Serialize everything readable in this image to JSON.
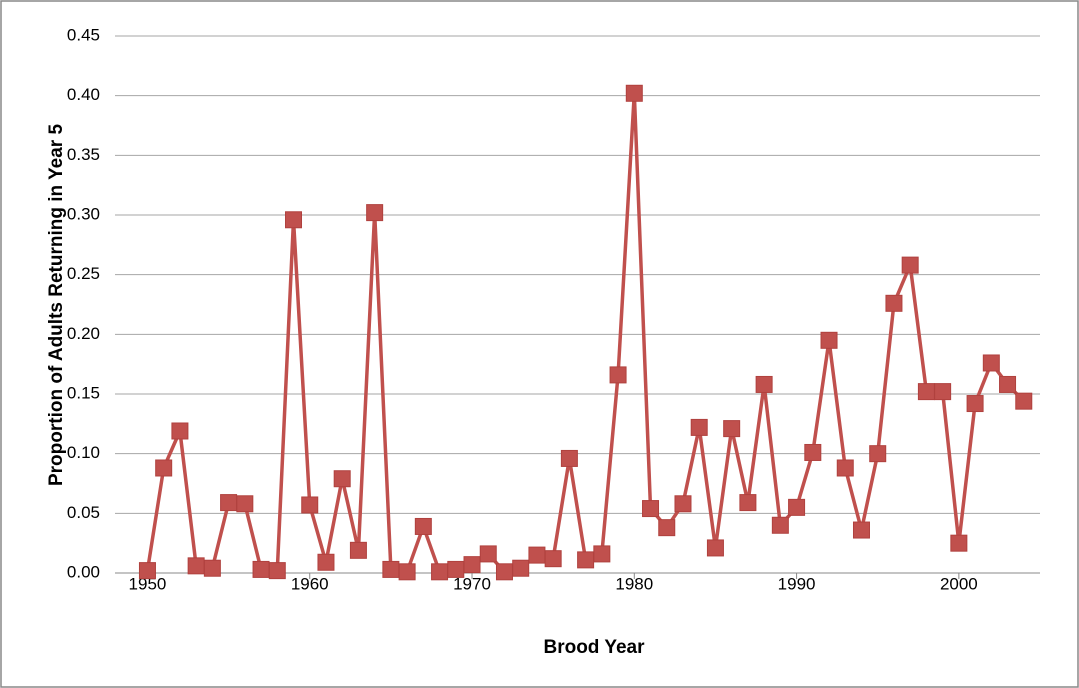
{
  "chart_data": {
    "type": "line",
    "x_label": "Brood Year",
    "y_label": "Proportion of Adults Returning in Year 5",
    "x": [
      1950,
      1951,
      1952,
      1953,
      1954,
      1955,
      1956,
      1957,
      1958,
      1959,
      1960,
      1961,
      1962,
      1963,
      1964,
      1965,
      1966,
      1967,
      1968,
      1969,
      1970,
      1971,
      1972,
      1973,
      1974,
      1975,
      1976,
      1977,
      1978,
      1979,
      1980,
      1981,
      1982,
      1983,
      1984,
      1985,
      1986,
      1987,
      1988,
      1989,
      1990,
      1991,
      1992,
      1993,
      1994,
      1995,
      1996,
      1997,
      1998,
      1999,
      2000,
      2001,
      2002,
      2003,
      2004
    ],
    "values": [
      0.002,
      0.088,
      0.119,
      0.006,
      0.004,
      0.059,
      0.058,
      0.003,
      0.002,
      0.296,
      0.057,
      0.009,
      0.079,
      0.019,
      0.302,
      0.003,
      0.001,
      0.039,
      0.001,
      0.003,
      0.007,
      0.016,
      0.001,
      0.004,
      0.015,
      0.012,
      0.096,
      0.011,
      0.016,
      0.166,
      0.402,
      0.054,
      0.038,
      0.058,
      0.122,
      0.021,
      0.121,
      0.059,
      0.158,
      0.04,
      0.055,
      0.101,
      0.195,
      0.088,
      0.036,
      0.1,
      0.226,
      0.258,
      0.152,
      0.152,
      0.025,
      0.142,
      0.176,
      0.158,
      0.144
    ],
    "color": "#c0504d",
    "xlim": [
      1948,
      2005
    ],
    "xticks": [
      1950,
      1960,
      1970,
      1980,
      1990,
      2000
    ],
    "ylim": [
      0,
      0.45
    ],
    "yticks": [
      {
        "value": 0,
        "label": "0.00"
      },
      {
        "value": 0.05,
        "label": "0.05"
      },
      {
        "value": 0.1,
        "label": "0.10"
      },
      {
        "value": 0.15,
        "label": "0.15"
      },
      {
        "value": 0.2,
        "label": "0.20"
      },
      {
        "value": 0.25,
        "label": "0.25"
      },
      {
        "value": 0.3,
        "label": "0.30"
      },
      {
        "value": 0.35,
        "label": "0.35"
      },
      {
        "value": 0.4,
        "label": "0.40"
      },
      {
        "value": 0.45,
        "label": "0.45"
      }
    ],
    "grid": true
  }
}
